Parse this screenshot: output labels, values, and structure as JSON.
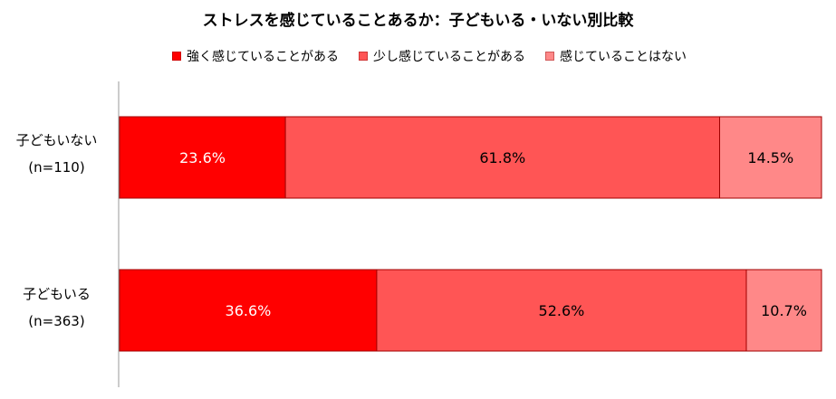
{
  "chart_data": {
    "type": "bar",
    "orientation": "horizontal-stacked-100",
    "title": "ストレスを感じていることあるか：子どもいる・いない別比較",
    "categories": [
      {
        "name": "子どもいない",
        "n": "(n=110)"
      },
      {
        "name": "子どもいる",
        "n": "(n=363)"
      }
    ],
    "series": [
      {
        "name": "強く感じていることがある",
        "color": "#ff0000",
        "values": [
          23.6,
          36.6
        ],
        "labels": [
          "23.6%",
          "36.6%"
        ]
      },
      {
        "name": "少し感じていることがある",
        "color": "#ff5555",
        "values": [
          61.8,
          52.6
        ],
        "labels": [
          "61.8%",
          "52.6%"
        ]
      },
      {
        "name": "感じていることはない",
        "color": "#ff8888",
        "values": [
          14.5,
          10.7
        ],
        "labels": [
          "14.5%",
          "10.7%"
        ]
      }
    ],
    "legend_position": "top",
    "grid": false
  }
}
